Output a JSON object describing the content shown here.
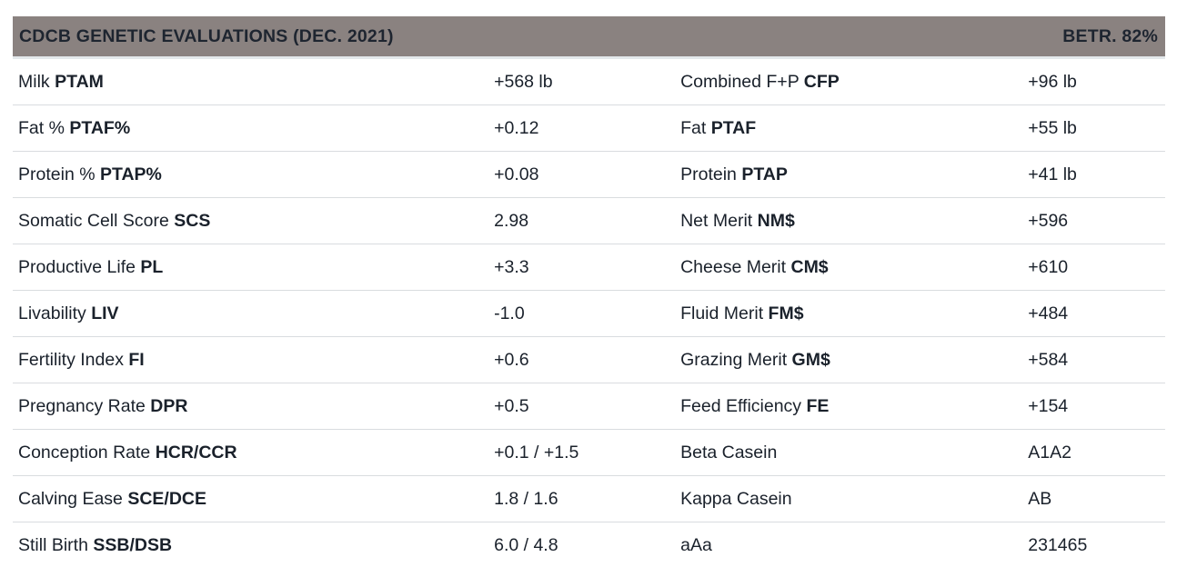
{
  "header": {
    "title": "CDCB GENETIC EVALUATIONS (DEC. 2021)",
    "reliability": "BETR. 82%"
  },
  "colors": {
    "header_bg": "#8a8280",
    "header_text": "#1e2530",
    "header_border": "#e3e8eb",
    "body_text": "#1a212b",
    "divider": "#d9dcdf",
    "background": "#ffffff"
  },
  "rows": [
    {
      "left": {
        "name": "Milk",
        "abbr": "PTAM",
        "value": "+568 lb"
      },
      "right": {
        "name": "Combined F+P",
        "abbr": "CFP",
        "value": "+96 lb"
      }
    },
    {
      "left": {
        "name": "Fat %",
        "abbr": "PTAF%",
        "value": "+0.12"
      },
      "right": {
        "name": "Fat",
        "abbr": "PTAF",
        "value": "+55 lb"
      }
    },
    {
      "left": {
        "name": "Protein %",
        "abbr": "PTAP%",
        "value": "+0.08"
      },
      "right": {
        "name": "Protein",
        "abbr": "PTAP",
        "value": "+41 lb"
      }
    },
    {
      "left": {
        "name": "Somatic Cell Score",
        "abbr": "SCS",
        "value": "2.98"
      },
      "right": {
        "name": "Net Merit",
        "abbr": "NM$",
        "value": "+596"
      }
    },
    {
      "left": {
        "name": "Productive Life",
        "abbr": "PL",
        "value": "+3.3"
      },
      "right": {
        "name": "Cheese Merit",
        "abbr": "CM$",
        "value": "+610"
      }
    },
    {
      "left": {
        "name": "Livability",
        "abbr": "LIV",
        "value": "-1.0"
      },
      "right": {
        "name": "Fluid Merit",
        "abbr": "FM$",
        "value": "+484"
      }
    },
    {
      "left": {
        "name": "Fertility Index",
        "abbr": "FI",
        "value": "+0.6"
      },
      "right": {
        "name": "Grazing Merit",
        "abbr": "GM$",
        "value": "+584"
      }
    },
    {
      "left": {
        "name": "Pregnancy Rate",
        "abbr": "DPR",
        "value": "+0.5"
      },
      "right": {
        "name": "Feed Efficiency",
        "abbr": "FE",
        "value": "+154"
      }
    },
    {
      "left": {
        "name": "Conception Rate",
        "abbr": "HCR/CCR",
        "value": "+0.1 / +1.5"
      },
      "right": {
        "name": "Beta Casein",
        "abbr": "",
        "value": "A1A2"
      }
    },
    {
      "left": {
        "name": "Calving Ease",
        "abbr": "SCE/DCE",
        "value": "1.8 / 1.6"
      },
      "right": {
        "name": "Kappa Casein",
        "abbr": "",
        "value": "AB"
      }
    },
    {
      "left": {
        "name": "Still Birth",
        "abbr": "SSB/DSB",
        "value": "6.0 / 4.8"
      },
      "right": {
        "name": "aAa",
        "abbr": "",
        "value": "231465"
      }
    }
  ]
}
